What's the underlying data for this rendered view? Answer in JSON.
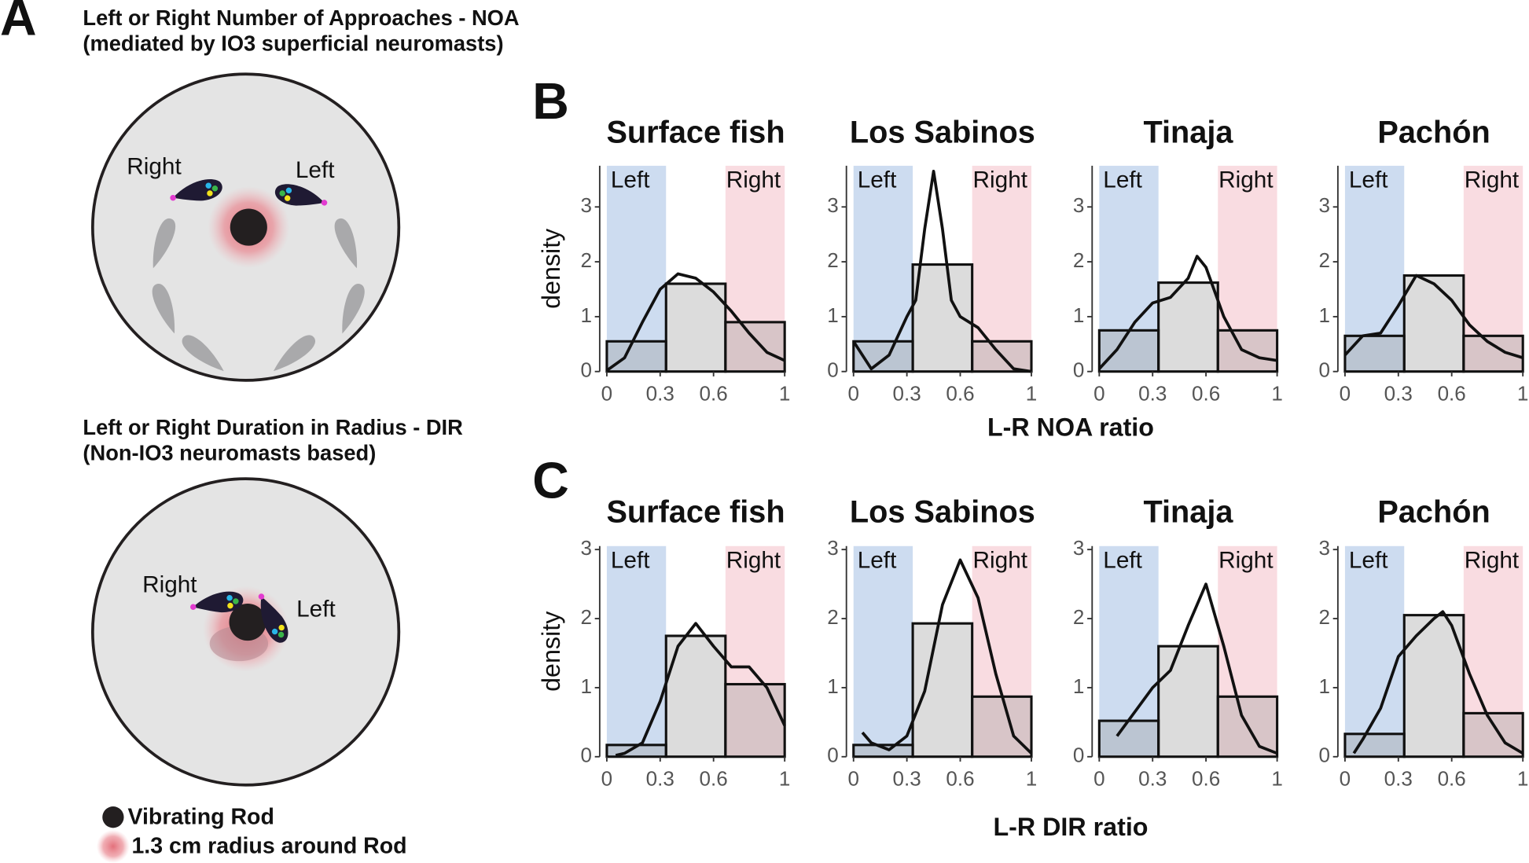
{
  "panel_a": {
    "label": "A",
    "diagrams": [
      {
        "title": "Left or Right Number of Approaches - NOA",
        "subtitle": "(mediated by IO3 superficial neuromasts)",
        "labels": [
          "Right",
          "Left"
        ]
      },
      {
        "title": "Left or Right Duration in Radius - DIR",
        "subtitle": "(Non-IO3 neuromasts based)",
        "labels": [
          "Right",
          "Left"
        ]
      }
    ],
    "legend": [
      "Vibrating Rod",
      "1.3 cm radius around Rod"
    ]
  },
  "panels": [
    {
      "label": "B",
      "ylabel": "density",
      "xlabel": "L-R NOA ratio"
    },
    {
      "label": "C",
      "ylabel": "density",
      "xlabel": "L-R DIR ratio"
    }
  ],
  "chart_data": [
    {
      "type": "histogram",
      "title": "Surface fish",
      "bins": [
        0,
        0.333,
        0.667,
        1
      ],
      "values": [
        0.55,
        1.6,
        0.9
      ],
      "color": "#9a9a9a",
      "density": {
        "x": [
          0,
          0.1,
          0.2,
          0.3,
          0.4,
          0.5,
          0.6,
          0.7,
          0.8,
          0.9,
          1
        ],
        "values": [
          0.02,
          0.25,
          0.9,
          1.5,
          1.78,
          1.7,
          1.45,
          1.1,
          0.7,
          0.35,
          0.2
        ],
        "color": "#111111"
      },
      "regions": [
        {
          "label": "Left",
          "xlim": [
            0,
            0.333
          ],
          "color": "#cddcf0"
        },
        {
          "label": "Right",
          "xlim": [
            0.667,
            1
          ],
          "color": "#f9dce1"
        }
      ],
      "xlim": [
        -0.04,
        1.04
      ],
      "ylim": [
        0,
        3.75
      ],
      "xticks": [
        0,
        0.3,
        0.6,
        1
      ],
      "yticks": [
        0,
        1,
        2,
        3
      ]
    },
    {
      "type": "histogram",
      "title": "Los Sabinos",
      "bins": [
        0,
        0.333,
        0.667,
        1
      ],
      "values": [
        0.55,
        1.95,
        0.55
      ],
      "color": "#9a9a9a",
      "density": {
        "x": [
          0,
          0.1,
          0.2,
          0.3,
          0.35,
          0.4,
          0.45,
          0.5,
          0.55,
          0.6,
          0.7,
          0.8,
          0.9,
          1
        ],
        "values": [
          0.55,
          0.05,
          0.3,
          1.0,
          1.3,
          2.6,
          3.65,
          2.6,
          1.3,
          1.0,
          0.8,
          0.4,
          0.05,
          0
        ],
        "color": "#111111"
      },
      "regions": [
        {
          "label": "Left",
          "xlim": [
            0,
            0.333
          ],
          "color": "#cddcf0"
        },
        {
          "label": "Right",
          "xlim": [
            0.667,
            1
          ],
          "color": "#f9dce1"
        }
      ],
      "xlim": [
        -0.04,
        1.04
      ],
      "ylim": [
        0,
        3.75
      ],
      "xticks": [
        0,
        0.3,
        0.6,
        1
      ],
      "yticks": [
        0,
        1,
        2,
        3
      ]
    },
    {
      "type": "histogram",
      "title": "Tinaja",
      "bins": [
        0,
        0.333,
        0.667,
        1
      ],
      "values": [
        0.75,
        1.62,
        0.75
      ],
      "color": "#9a9a9a",
      "density": {
        "x": [
          0,
          0.1,
          0.2,
          0.3,
          0.4,
          0.5,
          0.55,
          0.6,
          0.7,
          0.8,
          0.9,
          1
        ],
        "values": [
          0.05,
          0.4,
          0.9,
          1.25,
          1.35,
          1.7,
          2.1,
          1.9,
          1.0,
          0.4,
          0.25,
          0.2
        ],
        "color": "#111111"
      },
      "regions": [
        {
          "label": "Left",
          "xlim": [
            0,
            0.333
          ],
          "color": "#cddcf0"
        },
        {
          "label": "Right",
          "xlim": [
            0.667,
            1
          ],
          "color": "#f9dce1"
        }
      ],
      "xlim": [
        -0.04,
        1.04
      ],
      "ylim": [
        0,
        3.75
      ],
      "xticks": [
        0,
        0.3,
        0.6,
        1
      ],
      "yticks": [
        0,
        1,
        2,
        3
      ]
    },
    {
      "type": "histogram",
      "title": "Pachón",
      "bins": [
        0,
        0.333,
        0.667,
        1
      ],
      "values": [
        0.65,
        1.75,
        0.65
      ],
      "color": "#9a9a9a",
      "density": {
        "x": [
          0,
          0.1,
          0.2,
          0.3,
          0.4,
          0.5,
          0.6,
          0.7,
          0.8,
          0.9,
          1
        ],
        "values": [
          0.3,
          0.65,
          0.7,
          1.2,
          1.75,
          1.6,
          1.3,
          0.85,
          0.55,
          0.35,
          0.25
        ],
        "color": "#111111"
      },
      "regions": [
        {
          "label": "Left",
          "xlim": [
            0,
            0.333
          ],
          "color": "#cddcf0"
        },
        {
          "label": "Right",
          "xlim": [
            0.667,
            1
          ],
          "color": "#f9dce1"
        }
      ],
      "xlim": [
        -0.04,
        1.04
      ],
      "ylim": [
        0,
        3.75
      ],
      "xticks": [
        0,
        0.3,
        0.6,
        1
      ],
      "yticks": [
        0,
        1,
        2,
        3
      ]
    },
    {
      "type": "histogram",
      "title": "Surface fish",
      "bins": [
        0,
        0.333,
        0.667,
        1
      ],
      "values": [
        0.17,
        1.75,
        1.05
      ],
      "color": "#9a9a9a",
      "density": {
        "x": [
          0.05,
          0.1,
          0.2,
          0.3,
          0.4,
          0.5,
          0.6,
          0.7,
          0.8,
          0.9,
          1
        ],
        "values": [
          0.02,
          0.05,
          0.2,
          0.8,
          1.6,
          1.93,
          1.6,
          1.3,
          1.3,
          1.0,
          0.45
        ],
        "color": "#111111"
      },
      "regions": [
        {
          "label": "Left",
          "xlim": [
            0,
            0.333
          ],
          "color": "#cddcf0"
        },
        {
          "label": "Right",
          "xlim": [
            0.667,
            1
          ],
          "color": "#f9dce1"
        }
      ],
      "xlim": [
        -0.04,
        1.04
      ],
      "ylim": [
        0,
        3.05
      ],
      "xticks": [
        0,
        0.3,
        0.6,
        1
      ],
      "yticks": [
        0,
        1,
        2,
        3
      ]
    },
    {
      "type": "histogram",
      "title": "Los Sabinos",
      "bins": [
        0,
        0.333,
        0.667,
        1
      ],
      "values": [
        0.17,
        1.93,
        0.87
      ],
      "color": "#9a9a9a",
      "density": {
        "x": [
          0.05,
          0.1,
          0.2,
          0.3,
          0.4,
          0.5,
          0.6,
          0.7,
          0.8,
          0.9,
          1
        ],
        "values": [
          0.35,
          0.2,
          0.1,
          0.3,
          0.95,
          2.2,
          2.85,
          2.3,
          1.2,
          0.3,
          0.05
        ],
        "color": "#111111"
      },
      "regions": [
        {
          "label": "Left",
          "xlim": [
            0,
            0.333
          ],
          "color": "#cddcf0"
        },
        {
          "label": "Right",
          "xlim": [
            0.667,
            1
          ],
          "color": "#f9dce1"
        }
      ],
      "xlim": [
        -0.04,
        1.04
      ],
      "ylim": [
        0,
        3.05
      ],
      "xticks": [
        0,
        0.3,
        0.6,
        1
      ],
      "yticks": [
        0,
        1,
        2,
        3
      ]
    },
    {
      "type": "histogram",
      "title": "Tinaja",
      "bins": [
        0,
        0.333,
        0.667,
        1
      ],
      "values": [
        0.52,
        1.6,
        0.87
      ],
      "color": "#9a9a9a",
      "density": {
        "x": [
          0.1,
          0.2,
          0.3,
          0.4,
          0.5,
          0.6,
          0.7,
          0.8,
          0.9,
          1
        ],
        "values": [
          0.3,
          0.65,
          1.0,
          1.25,
          1.9,
          2.5,
          1.6,
          0.6,
          0.15,
          0.05
        ],
        "color": "#111111"
      },
      "regions": [
        {
          "label": "Left",
          "xlim": [
            0,
            0.333
          ],
          "color": "#cddcf0"
        },
        {
          "label": "Right",
          "xlim": [
            0.667,
            1
          ],
          "color": "#f9dce1"
        }
      ],
      "xlim": [
        -0.04,
        1.04
      ],
      "ylim": [
        0,
        3.05
      ],
      "xticks": [
        0,
        0.3,
        0.6,
        1
      ],
      "yticks": [
        0,
        1,
        2,
        3
      ]
    },
    {
      "type": "histogram",
      "title": "Pachón",
      "bins": [
        0,
        0.333,
        0.667,
        1
      ],
      "values": [
        0.33,
        2.05,
        0.63
      ],
      "color": "#9a9a9a",
      "density": {
        "x": [
          0.05,
          0.1,
          0.2,
          0.3,
          0.4,
          0.5,
          0.55,
          0.6,
          0.7,
          0.8,
          0.9,
          1
        ],
        "values": [
          0.05,
          0.25,
          0.7,
          1.45,
          1.75,
          2.0,
          2.1,
          1.9,
          1.2,
          0.6,
          0.2,
          0.05
        ],
        "color": "#111111"
      },
      "regions": [
        {
          "label": "Left",
          "xlim": [
            0,
            0.333
          ],
          "color": "#cddcf0"
        },
        {
          "label": "Right",
          "xlim": [
            0.667,
            1
          ],
          "color": "#f9dce1"
        }
      ],
      "xlim": [
        -0.04,
        1.04
      ],
      "ylim": [
        0,
        3.05
      ],
      "xticks": [
        0,
        0.3,
        0.6,
        1
      ],
      "yticks": [
        0,
        1,
        2,
        3
      ]
    }
  ]
}
